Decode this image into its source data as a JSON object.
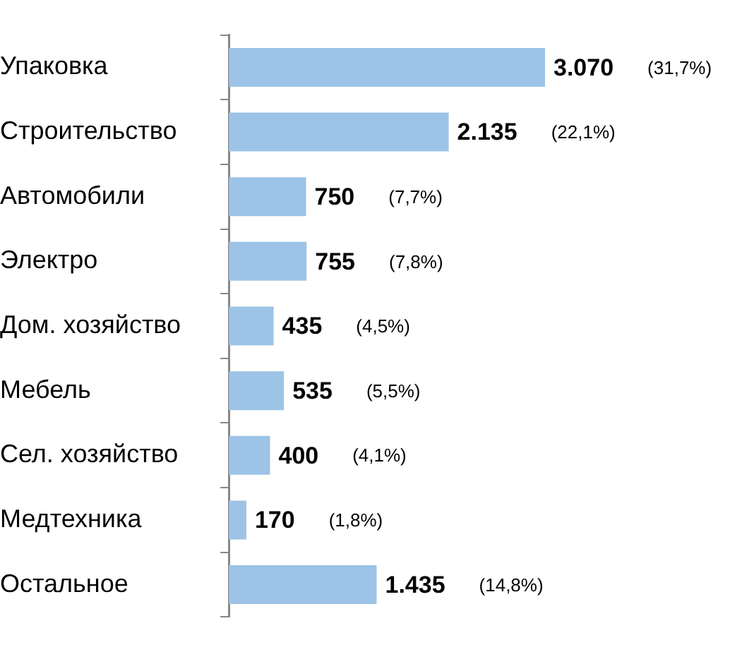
{
  "chart_data": {
    "type": "bar",
    "orientation": "horizontal",
    "categories": [
      "Упаковка",
      "Строительство",
      "Автомобили",
      "Электро",
      "Дом. хозяйство",
      "Мебель",
      "Сел. хозяйство",
      "Медтехника",
      "Остальное"
    ],
    "values": [
      3070,
      2135,
      750,
      755,
      435,
      535,
      400,
      170,
      1435
    ],
    "value_labels": [
      "3.070",
      "2.135",
      "750",
      "755",
      "435",
      "535",
      "400",
      "170",
      "1.435"
    ],
    "color": "#9dc3e6",
    "grid": false,
    "legend": false,
    "tick_labels": "y",
    "annotations": [
      "(31,7%)",
      "(22,1%)",
      "(7,7%)",
      "(7,8%)",
      "(4,5%)",
      "(5,5%)",
      "(4,1%)",
      "(1,8%)",
      "(14,8%)"
    ]
  }
}
